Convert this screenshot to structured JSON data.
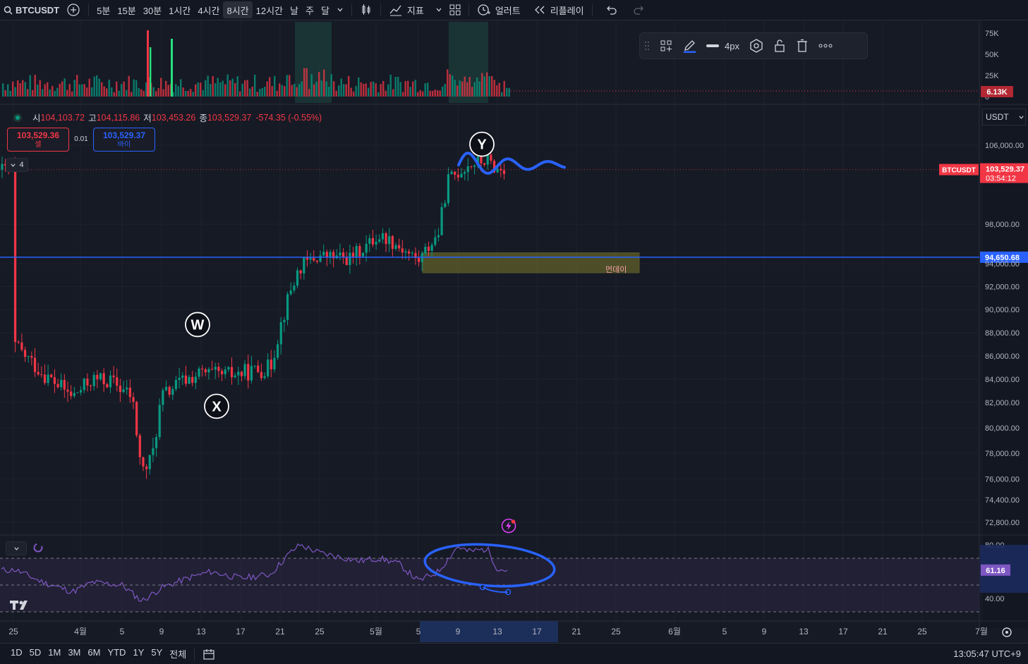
{
  "toolbar": {
    "symbol": "BTCUSDT",
    "intervals": [
      "5분",
      "15분",
      "30분",
      "1시간",
      "4시간",
      "8시간",
      "12시간",
      "날",
      "주",
      "달"
    ],
    "active_interval": "8시간",
    "indicators_label": "지표",
    "alert_label": "얼러트",
    "replay_label": "리플레이"
  },
  "drawing_toolbar": {
    "width_label": "4px",
    "accent": "#2962ff"
  },
  "legend": {
    "open_key": "시",
    "open": "104,103.72",
    "high_key": "고",
    "high": "104,115.86",
    "low_key": "저",
    "low": "103,453.26",
    "close_key": "종",
    "close": "103,529.37",
    "change": "-574.35 (-0.55%)"
  },
  "trade": {
    "sell_price": "103,529.36",
    "sell_label": "셀",
    "spread": "0.01",
    "buy_price": "103,529.37",
    "buy_label": "바이",
    "collapse_count": "4"
  },
  "currency": "USDT",
  "colors": {
    "up": "#089981",
    "down": "#f23645",
    "accent": "#2962ff",
    "rsi": "#7e57c2",
    "zone": "#7a7a2a"
  },
  "chart_data": [
    {
      "type": "candlestick",
      "name": "BTCUSDT 8h",
      "y_ticks": [
        "106,000.00",
        "98,000.00",
        "94,000.00",
        "92,000.00",
        "90,000.00",
        "88,000.00",
        "86,000.00",
        "84,000.00",
        "82,000.00",
        "80,000.00",
        "78,000.00",
        "76,000.00",
        "74,400.00",
        "72,800.00"
      ],
      "x_ticks": [
        "25",
        "4월",
        "5",
        "9",
        "13",
        "17",
        "21",
        "25",
        "5월",
        "5",
        "9",
        "13",
        "17",
        "21",
        "25",
        "6월",
        "5",
        "9",
        "13",
        "17",
        "21",
        "25",
        "7월"
      ],
      "ylim": [
        71800,
        107500
      ],
      "last_price": 103529.37,
      "last_price_label": "103,529.37",
      "countdown": "03:54:12",
      "symbol_tag": "BTCUSDT",
      "hline_price": 94650.68,
      "hline_label": "94,650.68",
      "zone": {
        "label": "먼데이",
        "from_date": "2025-05-05",
        "to_date": "2025-05-26",
        "low": 93200,
        "high": 95100
      },
      "annotations": [
        {
          "label": "W",
          "date": "2025-04-13",
          "price": 88700
        },
        {
          "label": "X",
          "date": "2025-04-16",
          "price": 81700
        },
        {
          "label": "Y",
          "date": "2025-05-12",
          "price": 106100
        }
      ],
      "closes": [
        {
          "date": "2025-03-25",
          "close": 87000
        },
        {
          "date": "2025-03-28",
          "close": 84500
        },
        {
          "date": "2025-03-31",
          "close": 82500
        },
        {
          "date": "2025-04-02",
          "close": 84000
        },
        {
          "date": "2025-04-04",
          "close": 83800
        },
        {
          "date": "2025-04-06",
          "close": 82500
        },
        {
          "date": "2025-04-07",
          "close": 76500
        },
        {
          "date": "2025-04-08",
          "close": 77500
        },
        {
          "date": "2025-04-09",
          "close": 82500
        },
        {
          "date": "2025-04-11",
          "close": 83800
        },
        {
          "date": "2025-04-13",
          "close": 84500
        },
        {
          "date": "2025-04-15",
          "close": 84300
        },
        {
          "date": "2025-04-17",
          "close": 84500
        },
        {
          "date": "2025-04-20",
          "close": 85000
        },
        {
          "date": "2025-04-21",
          "close": 88500
        },
        {
          "date": "2025-04-22",
          "close": 91500
        },
        {
          "date": "2025-04-23",
          "close": 93700
        },
        {
          "date": "2025-04-25",
          "close": 94800
        },
        {
          "date": "2025-04-28",
          "close": 94500
        },
        {
          "date": "2025-05-01",
          "close": 96800
        },
        {
          "date": "2025-05-02",
          "close": 96500
        },
        {
          "date": "2025-05-05",
          "close": 94300
        },
        {
          "date": "2025-05-07",
          "close": 97000
        },
        {
          "date": "2025-05-08",
          "close": 102500
        },
        {
          "date": "2025-05-10",
          "close": 104000
        },
        {
          "date": "2025-05-12",
          "close": 104500
        },
        {
          "date": "2025-05-13",
          "close": 103500
        },
        {
          "date": "2025-05-14",
          "close": 103529.37
        }
      ]
    },
    {
      "type": "bar",
      "name": "Volume",
      "y_ticks": [
        "75K",
        "50K",
        "25K",
        "0"
      ],
      "last_value": "6.13K"
    },
    {
      "type": "line",
      "name": "RSI",
      "y_ticks": [
        "80.00",
        "40.00"
      ],
      "last_value": "61.16",
      "bands": [
        70,
        50,
        30
      ],
      "values": [
        {
          "date": "2025-03-25",
          "value": 62
        },
        {
          "date": "2025-03-28",
          "value": 52
        },
        {
          "date": "2025-03-31",
          "value": 45
        },
        {
          "date": "2025-04-02",
          "value": 52
        },
        {
          "date": "2025-04-05",
          "value": 50
        },
        {
          "date": "2025-04-07",
          "value": 38
        },
        {
          "date": "2025-04-09",
          "value": 48
        },
        {
          "date": "2025-04-12",
          "value": 56
        },
        {
          "date": "2025-04-14",
          "value": 60
        },
        {
          "date": "2025-04-17",
          "value": 55
        },
        {
          "date": "2025-04-20",
          "value": 58
        },
        {
          "date": "2025-04-22",
          "value": 74
        },
        {
          "date": "2025-04-23",
          "value": 80
        },
        {
          "date": "2025-04-25",
          "value": 74
        },
        {
          "date": "2025-04-29",
          "value": 68
        },
        {
          "date": "2025-05-01",
          "value": 70
        },
        {
          "date": "2025-05-03",
          "value": 66
        },
        {
          "date": "2025-05-05",
          "value": 53
        },
        {
          "date": "2025-05-07",
          "value": 60
        },
        {
          "date": "2025-05-09",
          "value": 79
        },
        {
          "date": "2025-05-10",
          "value": 75
        },
        {
          "date": "2025-05-12",
          "value": 77
        },
        {
          "date": "2025-05-13",
          "value": 62
        },
        {
          "date": "2025-05-14",
          "value": 61.16
        }
      ]
    }
  ],
  "bottom": {
    "ranges": [
      "1D",
      "5D",
      "1M",
      "3M",
      "6M",
      "YTD",
      "1Y",
      "5Y",
      "전체"
    ],
    "clock": "13:05:47 UTC+9"
  }
}
